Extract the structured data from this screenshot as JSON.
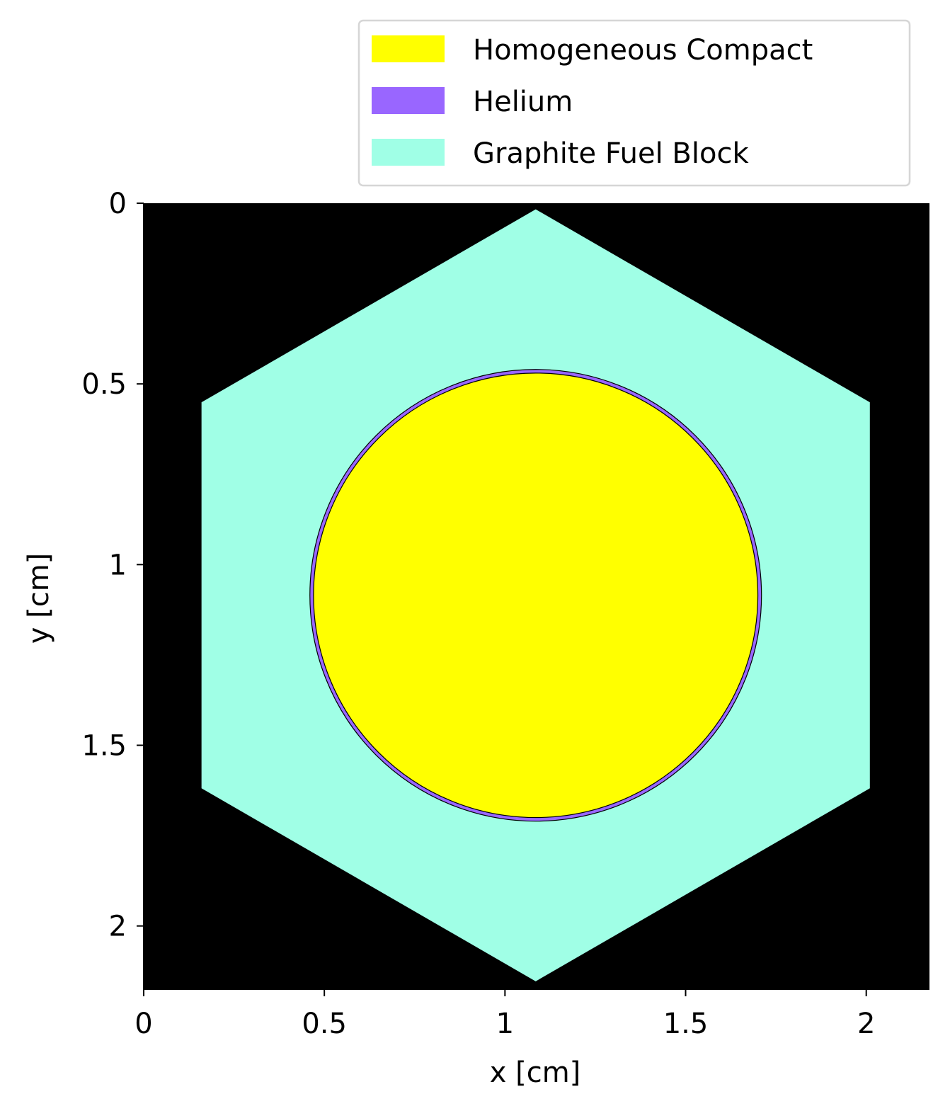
{
  "chart_data": {
    "type": "geometry_plot",
    "xlabel": "x [cm]",
    "ylabel": "y [cm]",
    "xlim": [
      0,
      2.175
    ],
    "ylim": [
      0,
      2.175
    ],
    "y_inverted": true,
    "x_ticks": [
      {
        "value": 0,
        "label": "0"
      },
      {
        "value": 0.5,
        "label": "0.5"
      },
      {
        "value": 1,
        "label": "1"
      },
      {
        "value": 1.5,
        "label": "1.5"
      },
      {
        "value": 2,
        "label": "2"
      }
    ],
    "y_ticks": [
      {
        "value": 0,
        "label": "0"
      },
      {
        "value": 0.5,
        "label": "0.5"
      },
      {
        "value": 1,
        "label": "1"
      },
      {
        "value": 1.5,
        "label": "1.5"
      },
      {
        "value": 2,
        "label": "2"
      }
    ],
    "background_color": "#000000",
    "legend_position": "top-right",
    "legend": [
      {
        "label": "Homogeneous Compact",
        "color": "#ffff00"
      },
      {
        "label": "Helium",
        "color": "#9966ff"
      },
      {
        "label": "Graphite Fuel Block",
        "color": "#a0ffe6"
      }
    ],
    "regions": {
      "fuel_block": {
        "shape": "hexagon",
        "center": [
          1.085,
          1.085
        ],
        "flat_to_flat": 1.85,
        "color": "#a0ffe6"
      },
      "helium_gap": {
        "shape": "circle",
        "center": [
          1.085,
          1.085
        ],
        "radius": 0.625,
        "color": "#9966ff"
      },
      "compact": {
        "shape": "circle",
        "center": [
          1.085,
          1.085
        ],
        "radius": 0.615,
        "color": "#ffff00"
      }
    }
  }
}
